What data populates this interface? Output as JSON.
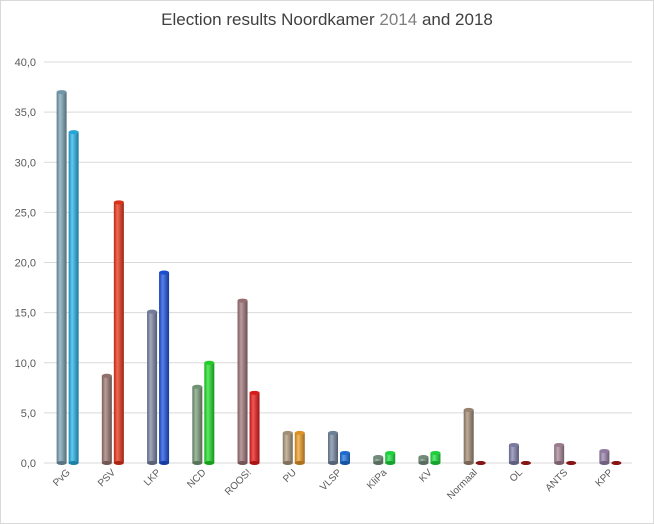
{
  "chart_data": {
    "type": "bar",
    "title_prefix": "Election results Noordkamer ",
    "title_year1": "2014",
    "title_join": " and ",
    "title_year2": "2018",
    "ylim": [
      0,
      40
    ],
    "yticks": [
      "0,0",
      "5,0",
      "10,0",
      "15,0",
      "20,0",
      "25,0",
      "30,0",
      "35,0",
      "40,0"
    ],
    "grid": true,
    "categories": [
      "PvG",
      "PSV",
      "LKP",
      "NCD",
      "ROOS!",
      "PU",
      "VLSP",
      "KliPa",
      "KV",
      "Normaal",
      "OL",
      "ANTS",
      "KPP"
    ],
    "series": [
      {
        "values": [
          37.0,
          8.7,
          15.1,
          7.6,
          16.2,
          3.0,
          3.0,
          0.6,
          0.6,
          5.3,
          1.8,
          1.8,
          1.2
        ],
        "colors": [
          "#7fa7b8",
          "#a07c76",
          "#7f8baa",
          "#7fa380",
          "#a47a7e",
          "#b4a083",
          "#7a8ea6",
          "#7e9a86",
          "#7e9a86",
          "#a8907a",
          "#8886b4",
          "#ac8a9c",
          "#a088b2"
        ]
      },
      {
        "values": [
          33.0,
          26.0,
          19.0,
          10.0,
          7.0,
          3.0,
          1.0,
          1.0,
          1.0,
          0.0,
          0.0,
          0.0,
          0.0
        ],
        "colors": [
          "#29b8ee",
          "#f0361c",
          "#1f55e6",
          "#22e42a",
          "#f21c1c",
          "#f4a228",
          "#2077e6",
          "#21e842",
          "#21e842",
          "#c02020",
          "#c02020",
          "#c02020",
          "#c02020"
        ]
      }
    ]
  }
}
